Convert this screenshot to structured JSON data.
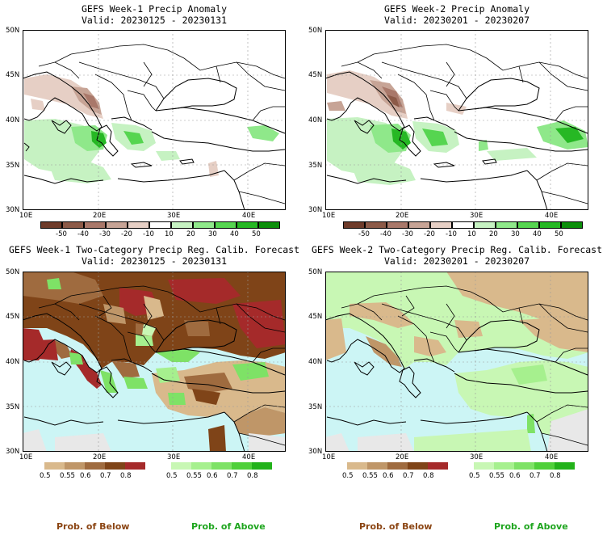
{
  "panels": [
    {
      "title1": "GEFS Week-1 Precip Anomaly",
      "title2": "Valid: 20230125 - 20230131"
    },
    {
      "title1": "GEFS Week-2 Precip Anomaly",
      "title2": "Valid: 20230201 - 20230207"
    },
    {
      "title1": "GEFS Week-1 Two-Category Precip Reg. Calib. Forecast",
      "title2": "Valid: 20230125 - 20230131"
    },
    {
      "title1": "GEFS Week-2 Two-Category Precip Reg. Calib. Forecast",
      "title2": "Valid: 20230201 - 20230207"
    }
  ],
  "lat_labels": [
    "50N",
    "45N",
    "40N",
    "35N",
    "30N"
  ],
  "lon_labels": [
    "10E",
    "20E",
    "30E",
    "40E"
  ],
  "anomaly_colorbar": {
    "labels": [
      "-50",
      "-40",
      "-30",
      "-20",
      "-10",
      "10",
      "20",
      "30",
      "40",
      "50"
    ],
    "colors": [
      "#6e3b2a",
      "#8c5a48",
      "#a9786a",
      "#c7a496",
      "#e6cfc5",
      "#ffffff",
      "#c6f2c2",
      "#8fe88a",
      "#56d550",
      "#26b824",
      "#0c8f0b"
    ]
  },
  "below_colorbar": {
    "labels": [
      "0.5",
      "0.55",
      "0.6",
      "0.7",
      "0.8"
    ],
    "colors": [
      "#d9b98c",
      "#bf9668",
      "#9f6b3f",
      "#7f4418",
      "#a52a2a"
    ]
  },
  "above_colorbar": {
    "labels": [
      "0.5",
      "0.55",
      "0.6",
      "0.7",
      "0.8"
    ],
    "colors": [
      "#c8f7b4",
      "#a6f08e",
      "#7ee266",
      "#4fd03a",
      "#22b21a"
    ]
  },
  "prob_below_label": "Prob. of Below",
  "prob_above_label": "Prob. of Above",
  "colors": {
    "sea_prob": "#ccf5f5",
    "normal": "#e8e8e8",
    "prob_below_text": "#8b4513",
    "prob_above_text": "#1ea51e"
  }
}
